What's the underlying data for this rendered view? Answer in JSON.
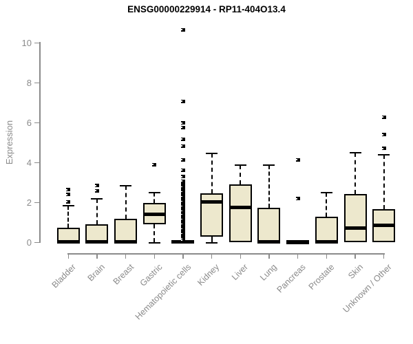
{
  "title": "ENSG00000229914 - RP11-404O13.4",
  "chart_data": {
    "type": "boxplot",
    "title": "ENSG00000229914 - RP11-404O13.4",
    "xlabel": "",
    "ylabel": "Expression",
    "ylim": [
      0,
      10
    ],
    "yticks": [
      0,
      2,
      4,
      6,
      8,
      10
    ],
    "grid": false,
    "categories": [
      "Bladder",
      "Brain",
      "Breast",
      "Gastric",
      "Hematopoietic cells",
      "Kidney",
      "Liver",
      "Lung",
      "Pancreas",
      "Prostate",
      "Skin",
      "Unknown / Other"
    ],
    "boxes": [
      {
        "label": "Bladder",
        "q1": 0,
        "median": 0.05,
        "q3": 0.75,
        "whisker_low": 0,
        "whisker_high": 1.85,
        "outliers": [
          2.05,
          2.4,
          2.65
        ]
      },
      {
        "label": "Brain",
        "q1": 0,
        "median": 0.05,
        "q3": 0.9,
        "whisker_low": 0,
        "whisker_high": 2.2,
        "outliers": [
          2.6,
          2.85
        ]
      },
      {
        "label": "Breast",
        "q1": 0,
        "median": 0.05,
        "q3": 1.2,
        "whisker_low": 0,
        "whisker_high": 2.85,
        "outliers": []
      },
      {
        "label": "Gastric",
        "q1": 0.9,
        "median": 1.4,
        "q3": 2.0,
        "whisker_low": 0,
        "whisker_high": 2.5,
        "outliers": [
          3.9
        ]
      },
      {
        "label": "Hematopoietic cells",
        "q1": 0,
        "median": 0.03,
        "q3": 0.07,
        "whisker_low": 0,
        "whisker_high": 0.07,
        "outliers": [
          10.67,
          7.08,
          5.99,
          5.76,
          5.18,
          4.84,
          4.15,
          3.63,
          3.31,
          3.07,
          2.94,
          2.88,
          2.82,
          2.76,
          2.7,
          2.64,
          2.58,
          2.52,
          2.46,
          2.4,
          2.34,
          2.28,
          2.22,
          2.16,
          2.1,
          2.04,
          1.98,
          1.92,
          1.86,
          1.8,
          1.74,
          1.68,
          1.62,
          1.56,
          1.5,
          1.44,
          1.38,
          1.32,
          1.26,
          1.2,
          1.14,
          1.08,
          1.02,
          0.96,
          0.9,
          0.84,
          0.78,
          0.72,
          0.66,
          0.6,
          0.54,
          0.48,
          0.42,
          0.36,
          0.3,
          0.24,
          0.18,
          0.12
        ]
      },
      {
        "label": "Kidney",
        "q1": 0.3,
        "median": 2.05,
        "q3": 2.48,
        "whisker_low": 0,
        "whisker_high": 4.45,
        "outliers": []
      },
      {
        "label": "Liver",
        "q1": 0,
        "median": 1.75,
        "q3": 2.9,
        "whisker_low": 0,
        "whisker_high": 3.88,
        "outliers": []
      },
      {
        "label": "Lung",
        "q1": 0,
        "median": 0.05,
        "q3": 1.73,
        "whisker_low": 0,
        "whisker_high": 3.88,
        "outliers": []
      },
      {
        "label": "Pancreas",
        "q1": 0,
        "median": 0.03,
        "q3": 0.05,
        "whisker_low": 0,
        "whisker_high": 0.05,
        "outliers": [
          4.15,
          2.2
        ]
      },
      {
        "label": "Prostate",
        "q1": 0,
        "median": 0.05,
        "q3": 1.28,
        "whisker_low": 0,
        "whisker_high": 2.5,
        "outliers": []
      },
      {
        "label": "Skin",
        "q1": 0,
        "median": 0.73,
        "q3": 2.42,
        "whisker_low": 0,
        "whisker_high": 4.5,
        "outliers": []
      },
      {
        "label": "Unknown / Other",
        "q1": 0,
        "median": 0.85,
        "q3": 1.68,
        "whisker_low": 0,
        "whisker_high": 4.4,
        "outliers": [
          6.28,
          5.41,
          4.72
        ]
      }
    ],
    "colors": {
      "box_fill": "#EDE8CD",
      "box_border": "#000000",
      "median": "#000000",
      "axis": "#8a8a8a",
      "tick_label": "#8a8a8a",
      "title": "#000000"
    }
  }
}
